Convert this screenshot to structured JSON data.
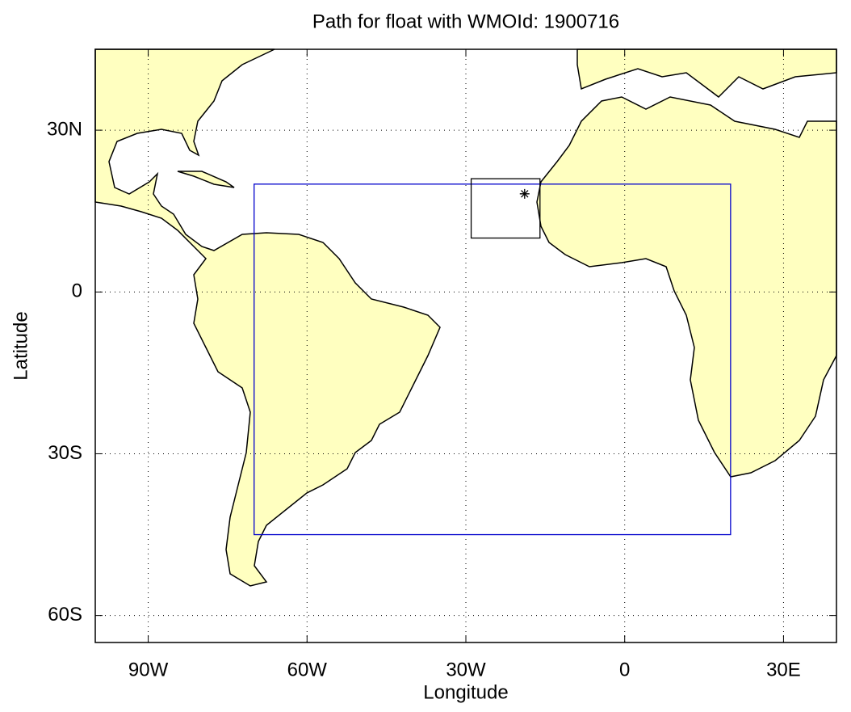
{
  "chart_data": {
    "type": "map",
    "title": "Path for float with WMOId: 1900716",
    "xlabel": "Longitude",
    "ylabel": "Latitude",
    "xlim": [
      -100,
      40
    ],
    "ylim": [
      -65,
      45
    ],
    "xticks": [
      {
        "value": -90,
        "label": "90W"
      },
      {
        "value": -60,
        "label": "60W"
      },
      {
        "value": -30,
        "label": "30W"
      },
      0,
      {
        "value": 30,
        "label": "30E"
      }
    ],
    "yticks": [
      {
        "value": 30,
        "label": "30N"
      },
      0,
      {
        "value": -30,
        "label": "30S"
      },
      {
        "value": -60,
        "label": "60S"
      }
    ],
    "grid": true,
    "land_color": "#ffffc0",
    "boxes": [
      {
        "color": "#0000cc",
        "x": [
          -70,
          20
        ],
        "y": [
          -45,
          20
        ]
      },
      {
        "color": "#000000",
        "x": [
          -29,
          -16
        ],
        "y": [
          10,
          21
        ]
      }
    ],
    "float": {
      "color": "#000000",
      "x": -18.9,
      "y": 18.2
    }
  }
}
